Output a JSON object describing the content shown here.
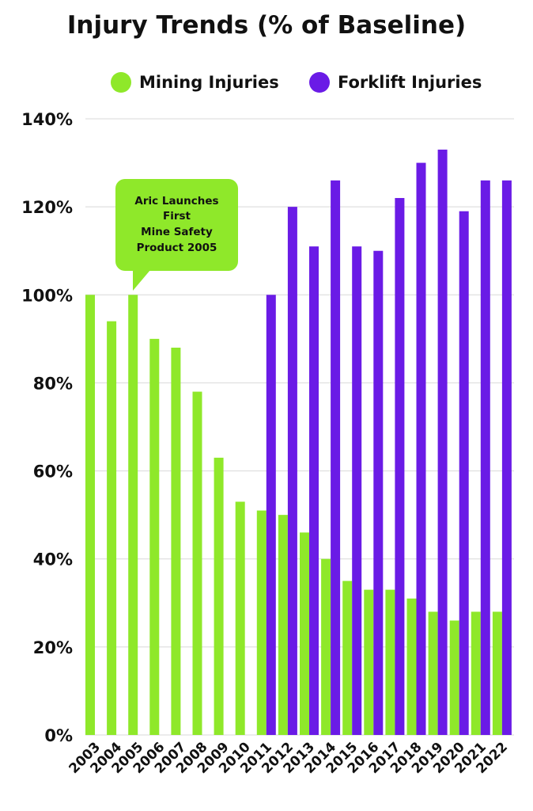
{
  "chart_data": {
    "type": "bar",
    "title": "Injury Trends (% of Baseline)",
    "categories": [
      "2003",
      "2004",
      "2005",
      "2006",
      "2007",
      "2008",
      "2009",
      "2010",
      "2011",
      "2012",
      "2013",
      "2014",
      "2015",
      "2016",
      "2017",
      "2018",
      "2019",
      "2020",
      "2021",
      "2022"
    ],
    "series": [
      {
        "name": "Mining Injuries",
        "color": "#8fe82a",
        "values": [
          100,
          94,
          100,
          90,
          88,
          78,
          63,
          53,
          51,
          50,
          46,
          40,
          35,
          33,
          33,
          31,
          28,
          26,
          28,
          28
        ]
      },
      {
        "name": "Forklift Injuries",
        "color": "#6a1be6",
        "values": [
          null,
          null,
          null,
          null,
          null,
          null,
          null,
          null,
          100,
          120,
          111,
          126,
          111,
          110,
          122,
          130,
          133,
          119,
          126,
          126
        ]
      }
    ],
    "ylim": [
      0,
      140
    ],
    "yticks": [
      0,
      20,
      40,
      60,
      80,
      100,
      120,
      140
    ],
    "ytick_suffix": "%",
    "xlabel": "",
    "ylabel": "",
    "grid": true,
    "legend_position": "top",
    "annotation": {
      "lines": [
        "Aric Launches",
        "First",
        "Mine Safety",
        "Product  2005"
      ],
      "target_category": "2005",
      "color": "#8fe82a"
    }
  }
}
